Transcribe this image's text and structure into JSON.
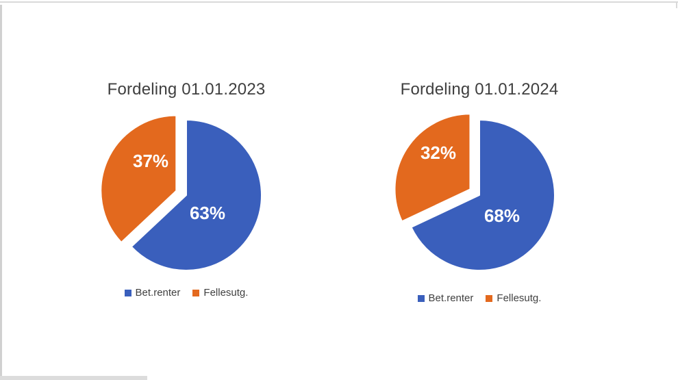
{
  "page": {
    "background": "#ffffff",
    "frame_color": "#d9d9d9"
  },
  "chart_data": [
    {
      "type": "pie",
      "title": "Fordeling 01.01.2023",
      "categories": [
        "Bet.renter",
        "Fellesutg."
      ],
      "values": [
        63,
        37
      ],
      "labels": [
        "63%",
        "37%"
      ],
      "colors": [
        "#3A5FBC",
        "#E3691E"
      ],
      "exploded_slice": "Fellesutg.",
      "start_angle_deg": 0,
      "direction": "clockwise",
      "legend_position": "bottom",
      "label_color": "#ffffff",
      "title_color": "#3f3f3f"
    },
    {
      "type": "pie",
      "title": "Fordeling 01.01.2024",
      "categories": [
        "Bet.renter",
        "Fellesutg."
      ],
      "values": [
        68,
        32
      ],
      "labels": [
        "68%",
        "32%"
      ],
      "colors": [
        "#3A5FBC",
        "#E3691E"
      ],
      "exploded_slice": "Fellesutg.",
      "start_angle_deg": 0,
      "direction": "clockwise",
      "legend_position": "bottom",
      "label_color": "#ffffff",
      "title_color": "#3f3f3f"
    }
  ]
}
